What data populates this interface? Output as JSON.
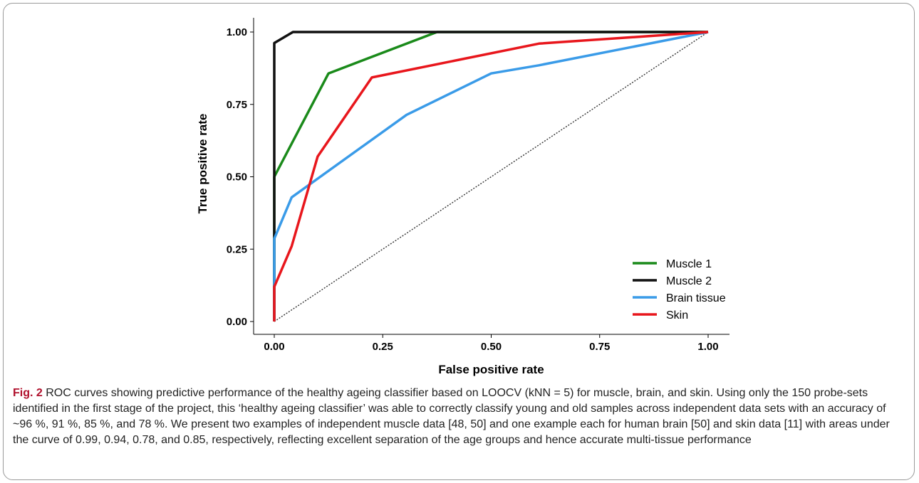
{
  "chart_data": {
    "type": "line",
    "xlabel": "False positive rate",
    "ylabel": "True positive rate",
    "xlim": [
      0,
      1
    ],
    "ylim": [
      0,
      1
    ],
    "xticks": [
      "0.00",
      "0.25",
      "0.50",
      "0.75",
      "1.00"
    ],
    "yticks": [
      "0.00",
      "0.25",
      "0.50",
      "0.75",
      "1.00"
    ],
    "grid": false,
    "legend_position": "bottom-right",
    "reference_line": {
      "style": "dotted",
      "color": "#333333",
      "points": [
        [
          0,
          0
        ],
        [
          1,
          1
        ]
      ]
    },
    "series": [
      {
        "name": "Muscle 1",
        "color": "#1a8a1a",
        "points": [
          [
            0,
            0
          ],
          [
            0,
            0.29
          ],
          [
            0,
            0.5
          ],
          [
            0.125,
            0.857
          ],
          [
            0.375,
            1.0
          ],
          [
            1.0,
            1.0
          ]
        ]
      },
      {
        "name": "Muscle 2",
        "color": "#111111",
        "points": [
          [
            0,
            0
          ],
          [
            0,
            0.962
          ],
          [
            0.043,
            1.0
          ],
          [
            1.0,
            1.0
          ]
        ]
      },
      {
        "name": "Brain tissue",
        "color": "#3a9be8",
        "points": [
          [
            0,
            0
          ],
          [
            0,
            0.12
          ],
          [
            0,
            0.286
          ],
          [
            0.04,
            0.429
          ],
          [
            0.305,
            0.714
          ],
          [
            0.5,
            0.857
          ],
          [
            0.61,
            0.885
          ],
          [
            1.0,
            1.0
          ]
        ]
      },
      {
        "name": "Skin",
        "color": "#e8161c",
        "points": [
          [
            0,
            0
          ],
          [
            0,
            0.12
          ],
          [
            0.04,
            0.26
          ],
          [
            0.1,
            0.57
          ],
          [
            0.225,
            0.843
          ],
          [
            0.61,
            0.96
          ],
          [
            1.0,
            1.0
          ]
        ]
      }
    ]
  },
  "caption": {
    "label": "Fig. 2",
    "text": " ROC curves showing predictive performance of the healthy ageing classifier based on LOOCV (kNN = 5) for muscle, brain, and skin. Using only the 150 probe-sets identified in the first stage of the project, this ‘healthy ageing classifier’ was able to correctly classify young and old samples across independent data sets with an accuracy of ~96 %, 91 %, 85 %, and 78 %. We present two examples of independent muscle data [48, 50] and one example each for human brain [50] and skin data [11] with areas under the curve of 0.99, 0.94, 0.78, and 0.85, respectively, reflecting excellent separation of the age groups and hence accurate multi-tissue performance"
  }
}
